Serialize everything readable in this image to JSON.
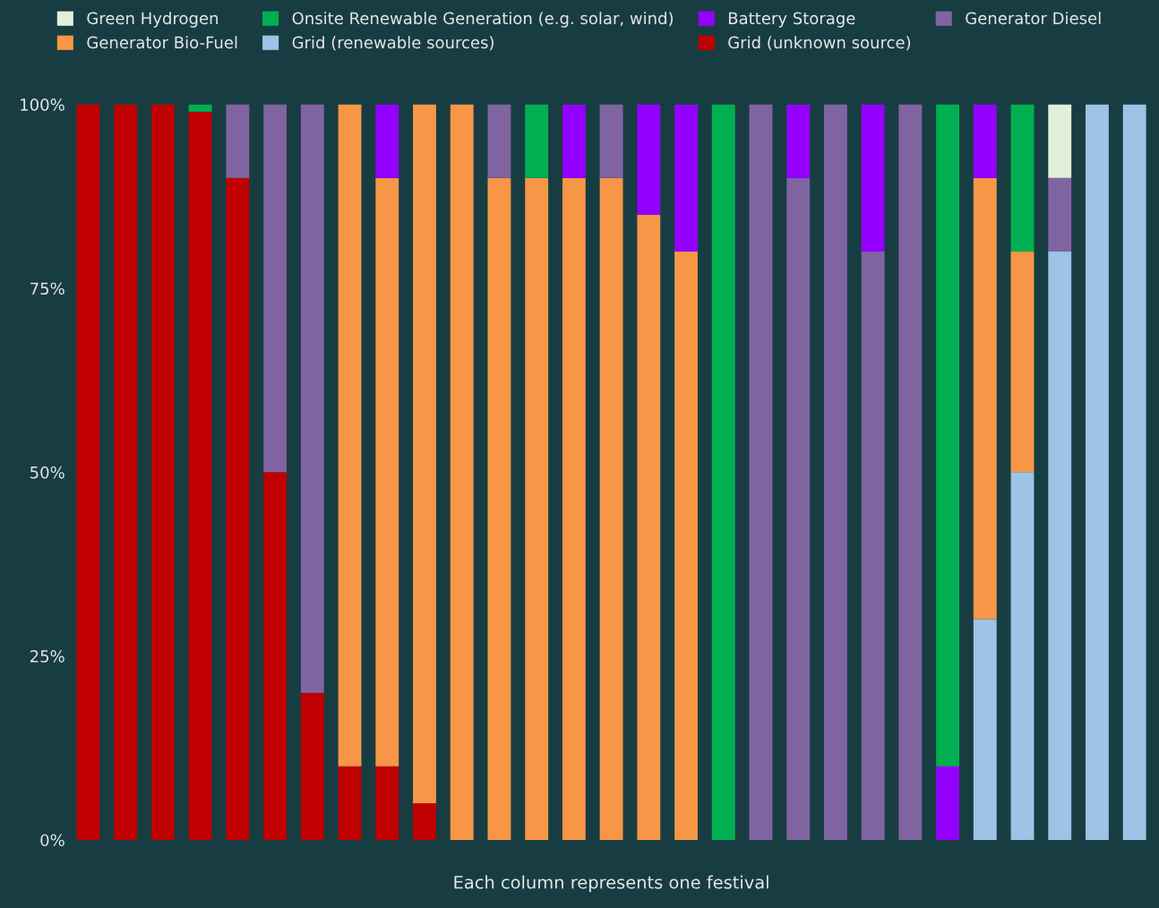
{
  "chart_data": {
    "type": "bar",
    "stacked": true,
    "xlabel": "Each column represents one festival",
    "categories": [
      null,
      null,
      null,
      null,
      null,
      null,
      null,
      null,
      null,
      null,
      null,
      null,
      null,
      null,
      null,
      null,
      null,
      null,
      null,
      null,
      null,
      null,
      null,
      null,
      null,
      null,
      null,
      null,
      null
    ],
    "ylim": [
      0,
      100
    ],
    "yticks": [
      {
        "value": 0,
        "label": "0%"
      },
      {
        "value": 25,
        "label": "25%"
      },
      {
        "value": 50,
        "label": "50%"
      },
      {
        "value": 75,
        "label": "75%"
      },
      {
        "value": 100,
        "label": "100%"
      }
    ],
    "grid": false,
    "legend": "top",
    "series": [
      {
        "name": "Grid (unknown source)",
        "color": "#c00000",
        "values": [
          100,
          100,
          100,
          99,
          90,
          50,
          20,
          10,
          10,
          5,
          null,
          null,
          null,
          null,
          null,
          null,
          null,
          null,
          null,
          null,
          null,
          null,
          null,
          null,
          null,
          null,
          null,
          null,
          null
        ]
      },
      {
        "name": "Grid (renewable sources)",
        "color": "#9dc3e6",
        "values": [
          null,
          null,
          null,
          null,
          null,
          null,
          null,
          null,
          null,
          null,
          null,
          null,
          null,
          null,
          null,
          null,
          null,
          null,
          null,
          null,
          null,
          null,
          null,
          null,
          30,
          50,
          80,
          100,
          100
        ]
      },
      {
        "name": "Generator Bio-Fuel",
        "color": "#f79646",
        "values": [
          null,
          null,
          null,
          null,
          null,
          null,
          null,
          90,
          80,
          95,
          100,
          90,
          90,
          90,
          90,
          85,
          80,
          null,
          null,
          null,
          null,
          null,
          null,
          null,
          60,
          30,
          null,
          null,
          null
        ]
      },
      {
        "name": "Generator Diesel",
        "color": "#8064a2",
        "values": [
          null,
          null,
          null,
          null,
          10,
          50,
          80,
          null,
          null,
          null,
          null,
          10,
          null,
          null,
          10,
          null,
          null,
          null,
          100,
          90,
          100,
          80,
          100,
          null,
          null,
          null,
          10,
          null,
          null
        ]
      },
      {
        "name": "Battery Storage",
        "color": "#9400ff",
        "values": [
          null,
          null,
          null,
          null,
          null,
          null,
          null,
          null,
          10,
          null,
          null,
          null,
          null,
          10,
          null,
          15,
          20,
          null,
          null,
          10,
          null,
          20,
          null,
          10,
          10,
          null,
          null,
          null,
          null
        ]
      },
      {
        "name": "Onsite Renewable Generation (e.g. solar, wind)",
        "color": "#00b050",
        "values": [
          null,
          null,
          null,
          1,
          null,
          null,
          null,
          null,
          null,
          null,
          null,
          null,
          10,
          null,
          null,
          null,
          null,
          100,
          null,
          null,
          null,
          null,
          null,
          90,
          null,
          20,
          null,
          null,
          null
        ]
      },
      {
        "name": "Green Hydrogen",
        "color": "#e2efda",
        "values": [
          null,
          null,
          null,
          null,
          null,
          null,
          null,
          null,
          null,
          null,
          null,
          null,
          null,
          null,
          null,
          null,
          null,
          null,
          null,
          null,
          null,
          null,
          null,
          null,
          null,
          null,
          10,
          null,
          null
        ]
      }
    ]
  }
}
